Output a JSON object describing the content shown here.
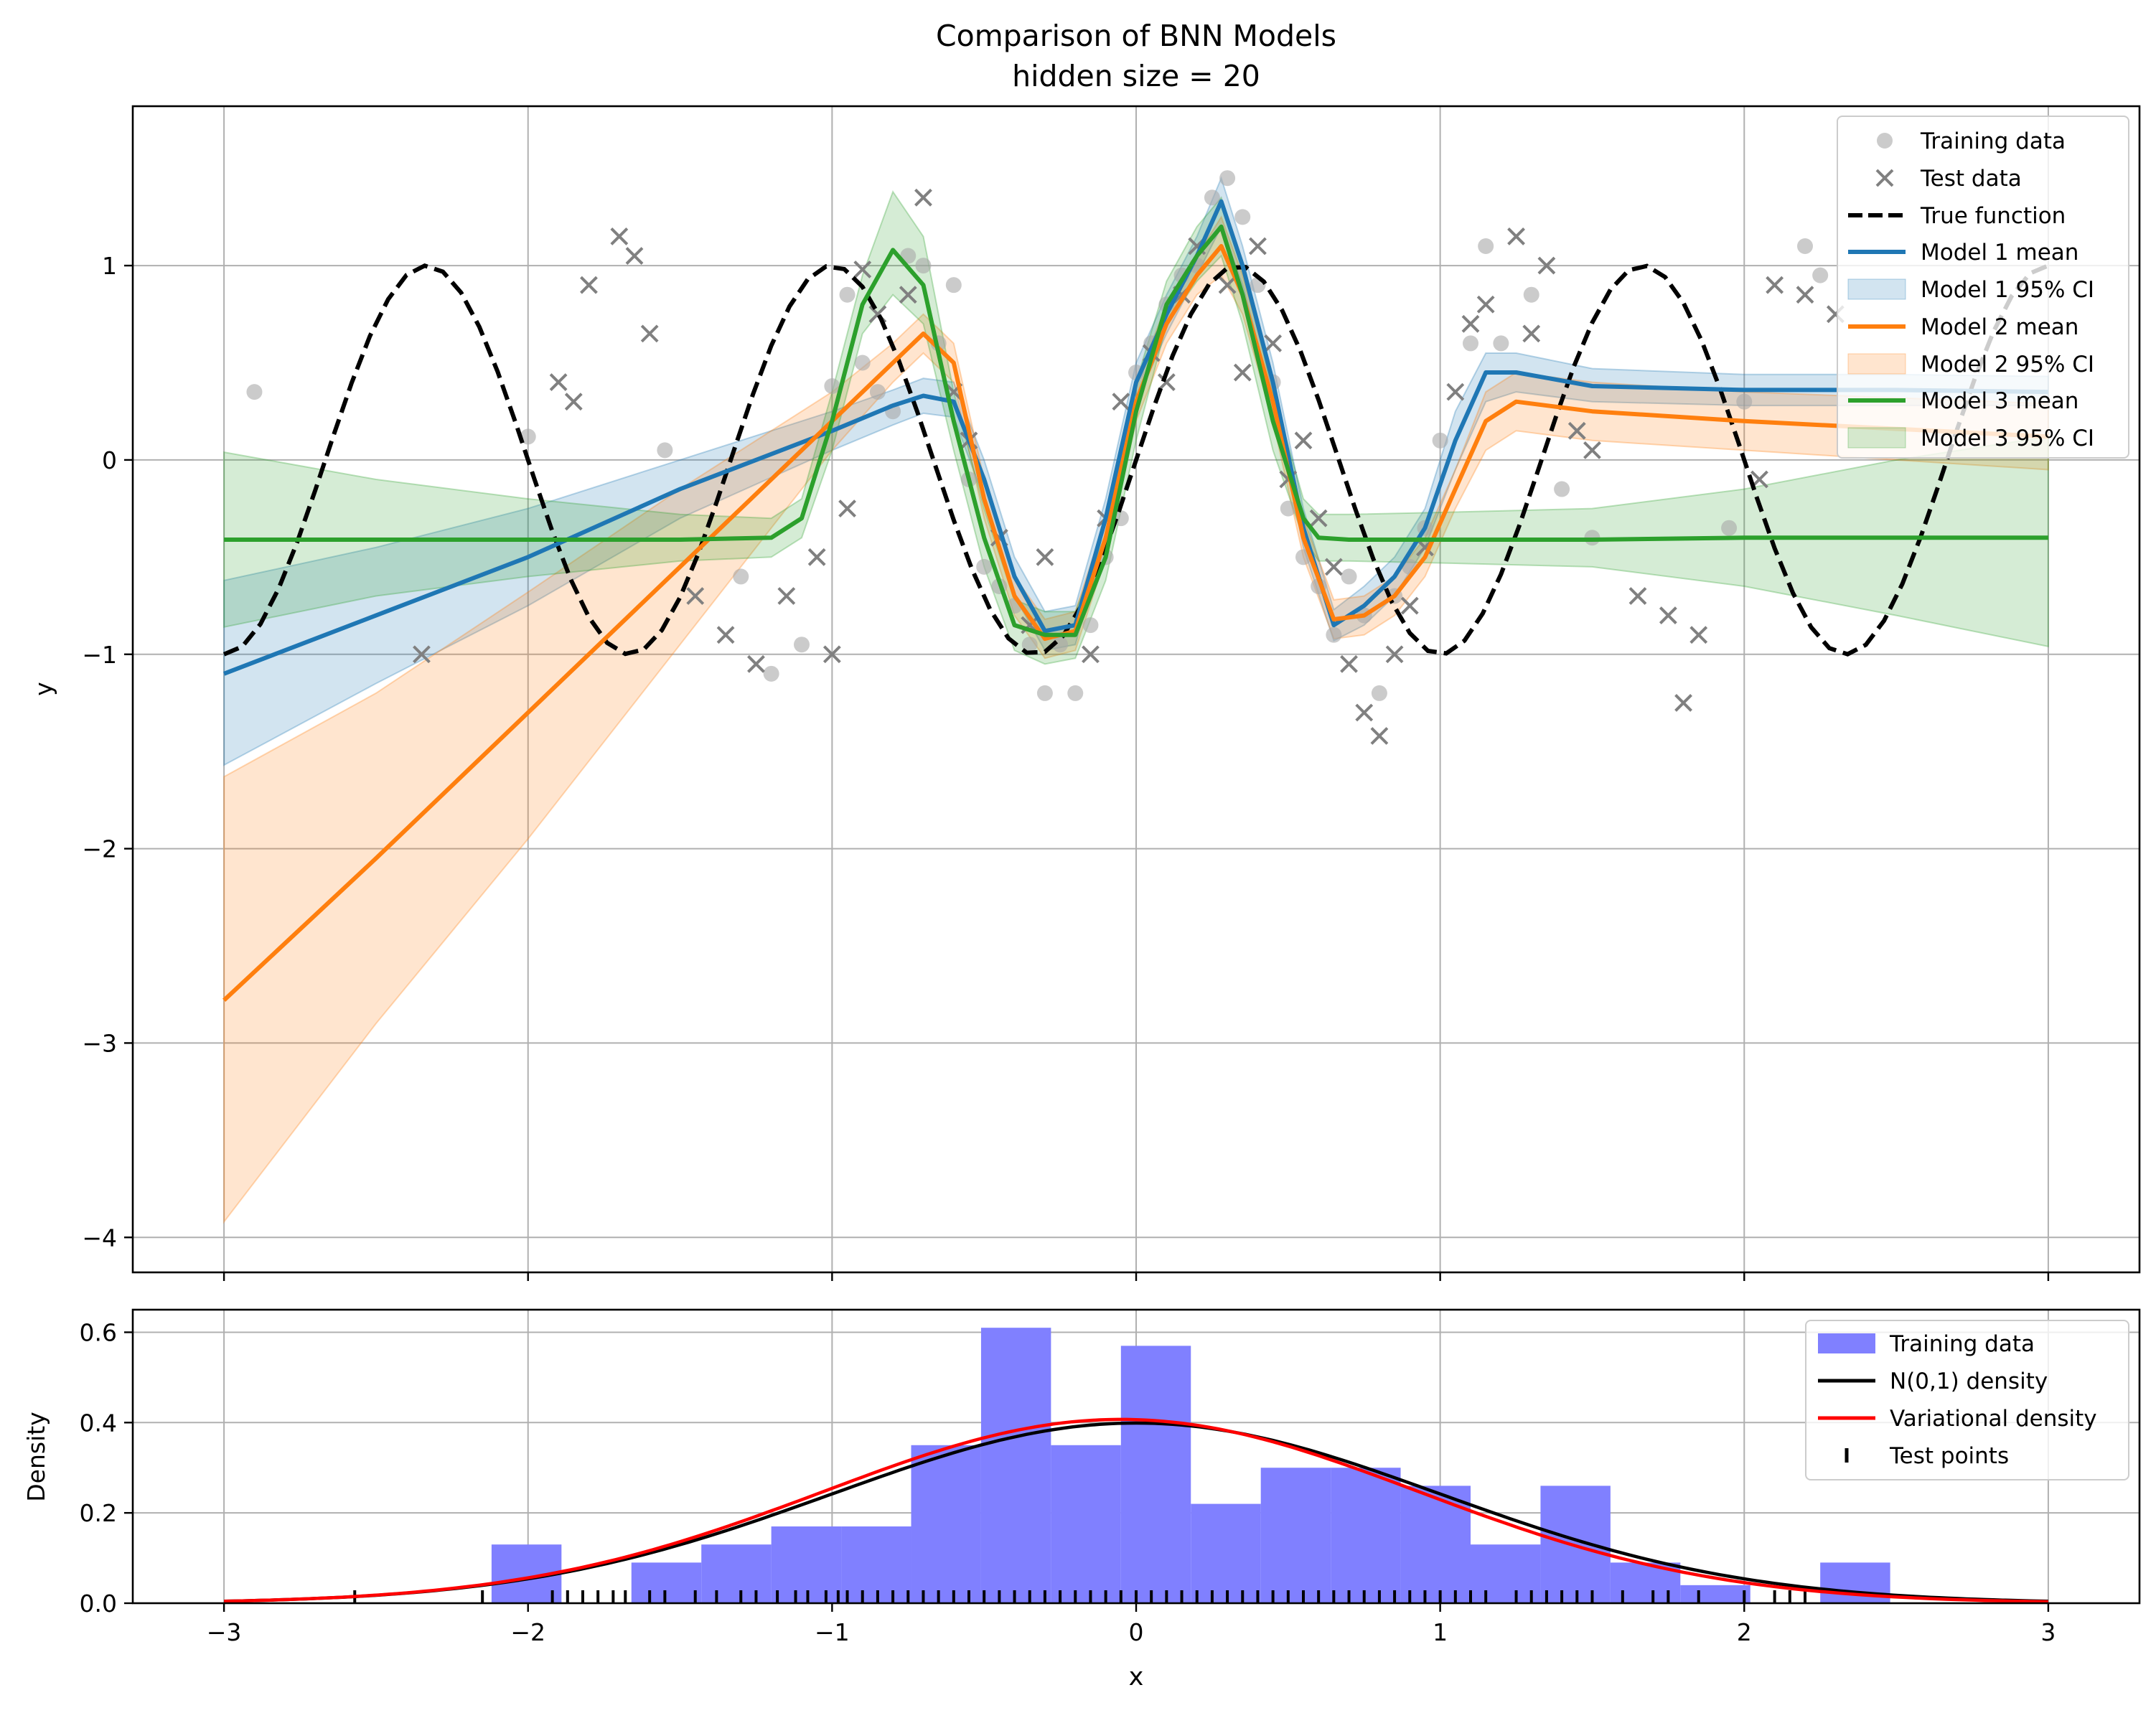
{
  "chart_data": [
    {
      "type": "line",
      "title": "Comparison of BNN Models",
      "subtitle": "hidden size = 20",
      "xlabel": "",
      "ylabel": "y",
      "xlim": [
        -3.3,
        3.3
      ],
      "ylim": [
        -4.18,
        1.82
      ],
      "xticks": [
        -3,
        -2,
        -1,
        0,
        1,
        2,
        3
      ],
      "xtick_labels": [
        "",
        "",
        "",
        "",
        "",
        "",
        ""
      ],
      "yticks": [
        -4,
        -3,
        -2,
        -1,
        0,
        1
      ],
      "ytick_labels": [
        "−4",
        "−3",
        "−2",
        "−1",
        "0",
        "1"
      ],
      "grid": true,
      "legend_position": "top-right",
      "legend": [
        {
          "label": "Training data",
          "kind": "circle",
          "color": "#a9a9a9"
        },
        {
          "label": "Test data",
          "kind": "cross",
          "color": "#808080"
        },
        {
          "label": "True function",
          "kind": "dashed",
          "color": "#000000"
        },
        {
          "label": "Model 1 mean",
          "kind": "line",
          "color": "#1f77b4"
        },
        {
          "label": "Model 1 95% CI",
          "kind": "band",
          "color": "#1f77b4"
        },
        {
          "label": "Model 2 mean",
          "kind": "line",
          "color": "#ff7f0e"
        },
        {
          "label": "Model 2 95% CI",
          "kind": "band",
          "color": "#ff7f0e"
        },
        {
          "label": "Model 3 mean",
          "kind": "line",
          "color": "#2ca02c"
        },
        {
          "label": "Model 3 95% CI",
          "kind": "band",
          "color": "#2ca02c"
        }
      ],
      "true_function": {
        "expression": "sin(3*pi*x/2)",
        "x_range": [
          -3,
          3
        ],
        "color": "#000000"
      },
      "series": [
        {
          "color": "#1f77b4",
          "x": [
            -3,
            -2.5,
            -2.0,
            -1.5,
            -1.0,
            -0.8,
            -0.7,
            -0.6,
            -0.5,
            -0.4,
            -0.3,
            -0.2,
            -0.1,
            0.0,
            0.1,
            0.2,
            0.28,
            0.35,
            0.45,
            0.55,
            0.65,
            0.75,
            0.85,
            0.95,
            1.05,
            1.15,
            1.25,
            1.5,
            2.0,
            2.5,
            3.0
          ],
          "mean": [
            -1.1,
            -0.8,
            -0.5,
            -0.15,
            0.15,
            0.28,
            0.33,
            0.3,
            -0.1,
            -0.6,
            -0.88,
            -0.85,
            -0.3,
            0.4,
            0.75,
            1.05,
            1.33,
            1.0,
            0.4,
            -0.35,
            -0.85,
            -0.75,
            -0.6,
            -0.35,
            0.1,
            0.45,
            0.45,
            0.38,
            0.36,
            0.36,
            0.35
          ],
          "lower": [
            -1.57,
            -1.15,
            -0.75,
            -0.3,
            0.05,
            0.18,
            0.24,
            0.22,
            -0.2,
            -0.7,
            -0.98,
            -0.95,
            -0.4,
            0.3,
            0.65,
            0.95,
            1.2,
            0.9,
            0.3,
            -0.45,
            -0.93,
            -0.85,
            -0.7,
            -0.45,
            -0.05,
            0.3,
            0.35,
            0.3,
            0.28,
            0.28,
            0.28
          ],
          "upper": [
            -0.62,
            -0.45,
            -0.25,
            0.0,
            0.25,
            0.36,
            0.42,
            0.4,
            0.0,
            -0.5,
            -0.78,
            -0.75,
            -0.2,
            0.5,
            0.85,
            1.15,
            1.45,
            1.1,
            0.5,
            -0.25,
            -0.77,
            -0.65,
            -0.5,
            -0.25,
            0.25,
            0.55,
            0.55,
            0.47,
            0.44,
            0.44,
            0.43
          ]
        },
        {
          "color": "#ff7f0e",
          "x": [
            -3,
            -2.5,
            -2.0,
            -1.5,
            -1.0,
            -0.8,
            -0.7,
            -0.6,
            -0.5,
            -0.4,
            -0.3,
            -0.2,
            -0.1,
            0.0,
            0.1,
            0.2,
            0.28,
            0.35,
            0.45,
            0.55,
            0.65,
            0.75,
            0.85,
            0.95,
            1.05,
            1.15,
            1.25,
            1.5,
            2.0,
            2.5,
            3.0
          ],
          "mean": [
            -2.78,
            -2.05,
            -1.3,
            -0.55,
            0.2,
            0.5,
            0.65,
            0.5,
            -0.2,
            -0.7,
            -0.92,
            -0.88,
            -0.4,
            0.3,
            0.7,
            0.95,
            1.1,
            0.85,
            0.3,
            -0.4,
            -0.82,
            -0.8,
            -0.7,
            -0.5,
            -0.15,
            0.2,
            0.3,
            0.25,
            0.2,
            0.16,
            0.12
          ],
          "lower": [
            -3.92,
            -2.9,
            -1.95,
            -0.95,
            0.05,
            0.4,
            0.55,
            0.4,
            -0.3,
            -0.8,
            -1.02,
            -0.98,
            -0.5,
            0.2,
            0.6,
            0.85,
            0.95,
            0.75,
            0.2,
            -0.5,
            -0.92,
            -0.9,
            -0.8,
            -0.6,
            -0.25,
            0.05,
            0.15,
            0.1,
            0.05,
            0.0,
            -0.05
          ],
          "upper": [
            -1.63,
            -1.2,
            -0.68,
            -0.15,
            0.35,
            0.6,
            0.75,
            0.6,
            -0.1,
            -0.6,
            -0.82,
            -0.78,
            -0.3,
            0.4,
            0.8,
            1.05,
            1.25,
            0.95,
            0.4,
            -0.3,
            -0.72,
            -0.7,
            -0.6,
            -0.4,
            -0.05,
            0.35,
            0.45,
            0.4,
            0.35,
            0.32,
            0.29
          ]
        },
        {
          "color": "#2ca02c",
          "x": [
            -3,
            -2.5,
            -2.0,
            -1.5,
            -1.2,
            -1.1,
            -1.0,
            -0.9,
            -0.8,
            -0.7,
            -0.6,
            -0.5,
            -0.4,
            -0.3,
            -0.2,
            -0.1,
            0.0,
            0.1,
            0.2,
            0.28,
            0.35,
            0.45,
            0.55,
            0.6,
            0.7,
            1.0,
            1.5,
            2.0,
            2.5,
            3.0
          ],
          "mean": [
            -0.41,
            -0.41,
            -0.41,
            -0.41,
            -0.4,
            -0.3,
            0.2,
            0.8,
            1.08,
            0.9,
            0.2,
            -0.4,
            -0.85,
            -0.9,
            -0.9,
            -0.5,
            0.25,
            0.8,
            1.05,
            1.2,
            0.85,
            0.2,
            -0.3,
            -0.4,
            -0.41,
            -0.41,
            -0.41,
            -0.4,
            -0.4,
            -0.4
          ],
          "lower": [
            -0.86,
            -0.7,
            -0.6,
            -0.52,
            -0.5,
            -0.4,
            0.05,
            0.65,
            0.85,
            0.7,
            0.05,
            -0.55,
            -0.98,
            -1.05,
            -1.02,
            -0.62,
            0.1,
            0.7,
            0.92,
            1.05,
            0.7,
            0.05,
            -0.4,
            -0.52,
            -0.52,
            -0.53,
            -0.55,
            -0.65,
            -0.8,
            -0.96
          ],
          "upper": [
            0.04,
            -0.1,
            -0.2,
            -0.28,
            -0.3,
            -0.2,
            0.35,
            0.95,
            1.38,
            1.15,
            0.35,
            -0.25,
            -0.72,
            -0.78,
            -0.78,
            -0.38,
            0.4,
            0.92,
            1.2,
            1.35,
            1.0,
            0.35,
            -0.2,
            -0.28,
            -0.28,
            -0.27,
            -0.25,
            -0.15,
            0.0,
            0.12
          ]
        }
      ],
      "training_points": [
        [
          -2.9,
          0.35
        ],
        [
          -2.0,
          0.12
        ],
        [
          -1.55,
          0.05
        ],
        [
          -1.3,
          -0.6
        ],
        [
          -1.2,
          -1.1
        ],
        [
          -1.1,
          -0.95
        ],
        [
          -1.0,
          0.38
        ],
        [
          -0.95,
          0.85
        ],
        [
          -0.9,
          0.5
        ],
        [
          -0.85,
          0.35
        ],
        [
          -0.8,
          0.25
        ],
        [
          -0.75,
          1.05
        ],
        [
          -0.7,
          1.0
        ],
        [
          -0.65,
          0.6
        ],
        [
          -0.6,
          0.9
        ],
        [
          -0.55,
          -0.1
        ],
        [
          -0.5,
          -0.55
        ],
        [
          -0.45,
          -0.65
        ],
        [
          -0.4,
          -0.75
        ],
        [
          -0.35,
          -0.95
        ],
        [
          -0.3,
          -1.2
        ],
        [
          -0.25,
          -0.95
        ],
        [
          -0.2,
          -1.2
        ],
        [
          -0.15,
          -0.85
        ],
        [
          -0.1,
          -0.5
        ],
        [
          -0.05,
          -0.3
        ],
        [
          0.0,
          0.45
        ],
        [
          0.05,
          0.6
        ],
        [
          0.1,
          0.8
        ],
        [
          0.15,
          0.95
        ],
        [
          0.2,
          1.0
        ],
        [
          0.25,
          1.35
        ],
        [
          0.3,
          1.45
        ],
        [
          0.35,
          1.25
        ],
        [
          0.4,
          0.9
        ],
        [
          0.45,
          0.4
        ],
        [
          0.5,
          -0.25
        ],
        [
          0.55,
          -0.5
        ],
        [
          0.6,
          -0.65
        ],
        [
          0.65,
          -0.9
        ],
        [
          0.7,
          -0.6
        ],
        [
          0.75,
          -0.8
        ],
        [
          0.8,
          -1.2
        ],
        [
          0.85,
          -0.7
        ],
        [
          0.9,
          -0.55
        ],
        [
          0.95,
          -0.35
        ],
        [
          1.0,
          0.1
        ],
        [
          1.1,
          0.6
        ],
        [
          1.15,
          1.1
        ],
        [
          1.2,
          0.6
        ],
        [
          1.3,
          0.85
        ],
        [
          1.4,
          -0.15
        ],
        [
          1.5,
          -0.4
        ],
        [
          1.95,
          -0.35
        ],
        [
          2.0,
          0.3
        ],
        [
          2.2,
          1.1
        ],
        [
          2.25,
          0.95
        ]
      ],
      "test_points": [
        [
          -2.35,
          -1.0
        ],
        [
          -1.9,
          0.4
        ],
        [
          -1.85,
          0.3
        ],
        [
          -1.8,
          0.9
        ],
        [
          -1.7,
          1.15
        ],
        [
          -1.65,
          1.05
        ],
        [
          -1.6,
          0.65
        ],
        [
          -1.45,
          -0.7
        ],
        [
          -1.35,
          -0.9
        ],
        [
          -1.25,
          -1.05
        ],
        [
          -1.15,
          -0.7
        ],
        [
          -1.05,
          -0.5
        ],
        [
          -1.0,
          -1.0
        ],
        [
          -0.95,
          -0.25
        ],
        [
          -0.9,
          0.98
        ],
        [
          -0.85,
          0.75
        ],
        [
          -0.75,
          0.85
        ],
        [
          -0.7,
          1.35
        ],
        [
          -0.6,
          0.35
        ],
        [
          -0.55,
          0.1
        ],
        [
          -0.45,
          -0.4
        ],
        [
          -0.35,
          -0.85
        ],
        [
          -0.3,
          -0.5
        ],
        [
          -0.15,
          -1.0
        ],
        [
          -0.1,
          -0.3
        ],
        [
          -0.05,
          0.3
        ],
        [
          0.05,
          0.55
        ],
        [
          0.1,
          0.4
        ],
        [
          0.15,
          0.85
        ],
        [
          0.2,
          1.1
        ],
        [
          0.3,
          0.9
        ],
        [
          0.35,
          0.45
        ],
        [
          0.4,
          1.1
        ],
        [
          0.45,
          0.6
        ],
        [
          0.5,
          -0.1
        ],
        [
          0.55,
          0.1
        ],
        [
          0.6,
          -0.3
        ],
        [
          0.65,
          -0.55
        ],
        [
          0.7,
          -1.05
        ],
        [
          0.75,
          -1.3
        ],
        [
          0.8,
          -1.42
        ],
        [
          0.85,
          -1.0
        ],
        [
          0.9,
          -0.75
        ],
        [
          0.95,
          -0.45
        ],
        [
          1.05,
          0.35
        ],
        [
          1.1,
          0.7
        ],
        [
          1.15,
          0.8
        ],
        [
          1.25,
          1.15
        ],
        [
          1.3,
          0.65
        ],
        [
          1.35,
          1.0
        ],
        [
          1.45,
          0.15
        ],
        [
          1.5,
          0.05
        ],
        [
          1.65,
          -0.7
        ],
        [
          1.75,
          -0.8
        ],
        [
          1.8,
          -1.25
        ],
        [
          1.85,
          -0.9
        ],
        [
          2.05,
          -0.1
        ],
        [
          2.1,
          0.9
        ],
        [
          2.2,
          0.85
        ],
        [
          2.3,
          0.75
        ]
      ]
    },
    {
      "type": "bar",
      "title": "",
      "xlabel": "x",
      "ylabel": "Density",
      "xlim": [
        -3.3,
        3.3
      ],
      "ylim": [
        0.0,
        0.65
      ],
      "xticks": [
        -3,
        -2,
        -1,
        0,
        1,
        2,
        3
      ],
      "xtick_labels": [
        "−3",
        "−2",
        "−1",
        "0",
        "1",
        "2",
        "3"
      ],
      "yticks": [
        0.0,
        0.2,
        0.4,
        0.6
      ],
      "ytick_labels": [
        "0.0",
        "0.2",
        "0.4",
        "0.6"
      ],
      "grid": true,
      "legend_position": "top-right",
      "legend": [
        {
          "label": "Training data",
          "kind": "patch",
          "color": "#8080ff"
        },
        {
          "label": "N(0,1) density",
          "kind": "line",
          "color": "#000000"
        },
        {
          "label": "Variational density",
          "kind": "line",
          "color": "#ff0000"
        },
        {
          "label": "Test points",
          "kind": "tick",
          "color": "#000000"
        }
      ],
      "histogram": {
        "color": "#8080ff",
        "bin_edges": [
          -2.12,
          -1.89,
          -1.66,
          -1.43,
          -1.2,
          -0.97,
          -0.74,
          -0.51,
          -0.28,
          -0.05,
          0.18,
          0.41,
          0.64,
          0.87,
          1.1,
          1.33,
          1.56,
          1.79,
          2.02,
          2.25,
          2.48
        ],
        "values": [
          0.13,
          0.0,
          0.09,
          0.13,
          0.17,
          0.17,
          0.35,
          0.61,
          0.35,
          0.57,
          0.22,
          0.3,
          0.3,
          0.26,
          0.13,
          0.26,
          0.09,
          0.04,
          0.0,
          0.09
        ]
      },
      "normal_density": {
        "mean": 0.0,
        "std": 1.0,
        "color": "#000000"
      },
      "variational_density": {
        "mean": -0.05,
        "std": 0.98,
        "color": "#ff0000"
      },
      "test_point_ticks": [
        -2.57,
        -2.15,
        -1.92,
        -1.87,
        -1.82,
        -1.77,
        -1.72,
        -1.68,
        -1.6,
        -1.55,
        -1.45,
        -1.38,
        -1.3,
        -1.25,
        -1.18,
        -1.12,
        -1.08,
        -1.02,
        -0.98,
        -0.95,
        -0.9,
        -0.85,
        -0.8,
        -0.75,
        -0.7,
        -0.65,
        -0.6,
        -0.55,
        -0.5,
        -0.45,
        -0.4,
        -0.35,
        -0.3,
        -0.25,
        -0.2,
        -0.15,
        -0.1,
        -0.05,
        0.0,
        0.05,
        0.1,
        0.15,
        0.2,
        0.25,
        0.3,
        0.35,
        0.4,
        0.45,
        0.5,
        0.55,
        0.6,
        0.65,
        0.7,
        0.75,
        0.8,
        0.85,
        0.9,
        0.95,
        1.0,
        1.05,
        1.1,
        1.15,
        1.25,
        1.3,
        1.35,
        1.4,
        1.45,
        1.5,
        1.6,
        1.7,
        1.75,
        1.85,
        2.0,
        2.1,
        2.15,
        2.2
      ]
    }
  ]
}
